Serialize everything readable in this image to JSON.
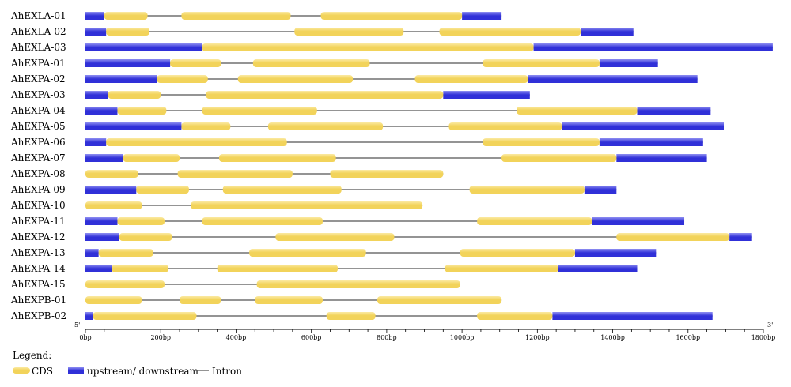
{
  "colors": {
    "cds": "#f2d35a",
    "cds_highlight": "#fbeaa2",
    "utr": "#3030d8",
    "utr_highlight": "#8e8ef2",
    "intron": "#555555",
    "axis": "#000000"
  },
  "axis": {
    "unit": "bp",
    "max": 1800,
    "ticks": [
      0,
      200,
      400,
      600,
      800,
      1000,
      1200,
      1400,
      1600,
      1800
    ],
    "tick_labels": [
      "0bp",
      "200bp",
      "400bp",
      "600bp",
      "800bp",
      "1000bp",
      "1200bp",
      "1400bp",
      "1600bp",
      "1800bp"
    ],
    "five_prime": "5'",
    "three_prime": "3'"
  },
  "legend": {
    "title": "Legend:",
    "cds": "CDS",
    "utr": "upstream/ downstream",
    "intron": "Intron"
  },
  "chart_data": {
    "type": "gene-structure",
    "genes": [
      {
        "name": "AhEXLA-01",
        "length": 1105,
        "utr": [
          [
            0,
            50
          ],
          [
            1000,
            1105
          ]
        ],
        "cds": [
          [
            50,
            165
          ],
          [
            255,
            545
          ],
          [
            625,
            1000
          ]
        ]
      },
      {
        "name": "AhEXLA-02",
        "length": 1455,
        "utr": [
          [
            0,
            55
          ],
          [
            1315,
            1455
          ]
        ],
        "cds": [
          [
            55,
            170
          ],
          [
            555,
            845
          ],
          [
            940,
            1315
          ]
        ]
      },
      {
        "name": "AhEXLA-03",
        "length": 1825,
        "utr": [
          [
            0,
            310
          ],
          [
            1190,
            1825
          ]
        ],
        "cds": [
          [
            310,
            1190
          ]
        ]
      },
      {
        "name": "AhEXPA-01",
        "length": 1520,
        "utr": [
          [
            0,
            225
          ],
          [
            1365,
            1520
          ]
        ],
        "cds": [
          [
            225,
            360
          ],
          [
            445,
            755
          ],
          [
            1055,
            1365
          ]
        ]
      },
      {
        "name": "AhEXPA-02",
        "length": 1625,
        "utr": [
          [
            0,
            190
          ],
          [
            1175,
            1625
          ]
        ],
        "cds": [
          [
            190,
            325
          ],
          [
            405,
            710
          ],
          [
            875,
            1175
          ]
        ]
      },
      {
        "name": "AhEXPA-03",
        "length": 1180,
        "utr": [
          [
            0,
            60
          ],
          [
            950,
            1180
          ]
        ],
        "cds": [
          [
            60,
            200
          ],
          [
            320,
            950
          ]
        ]
      },
      {
        "name": "AhEXPA-04",
        "length": 1660,
        "utr": [
          [
            0,
            85
          ],
          [
            1465,
            1660
          ]
        ],
        "cds": [
          [
            85,
            215
          ],
          [
            310,
            615
          ],
          [
            1145,
            1465
          ]
        ]
      },
      {
        "name": "AhEXPA-05",
        "length": 1695,
        "utr": [
          [
            0,
            255
          ],
          [
            1265,
            1695
          ]
        ],
        "cds": [
          [
            255,
            385
          ],
          [
            485,
            790
          ],
          [
            965,
            1265
          ]
        ]
      },
      {
        "name": "AhEXPA-06",
        "length": 1640,
        "utr": [
          [
            0,
            55
          ],
          [
            1365,
            1640
          ]
        ],
        "cds": [
          [
            55,
            535
          ],
          [
            1055,
            1365
          ]
        ]
      },
      {
        "name": "AhEXPA-07",
        "length": 1650,
        "utr": [
          [
            0,
            100
          ],
          [
            1410,
            1650
          ]
        ],
        "cds": [
          [
            100,
            250
          ],
          [
            355,
            665
          ],
          [
            1105,
            1410
          ]
        ]
      },
      {
        "name": "AhEXPA-08",
        "length": 950,
        "utr": [],
        "cds": [
          [
            0,
            140
          ],
          [
            245,
            550
          ],
          [
            650,
            950
          ]
        ]
      },
      {
        "name": "AhEXPA-09",
        "length": 1410,
        "utr": [
          [
            0,
            135
          ],
          [
            1325,
            1410
          ]
        ],
        "cds": [
          [
            135,
            275
          ],
          [
            365,
            680
          ],
          [
            1020,
            1325
          ]
        ]
      },
      {
        "name": "AhEXPA-10",
        "length": 895,
        "utr": [],
        "cds": [
          [
            0,
            150
          ],
          [
            280,
            895
          ]
        ]
      },
      {
        "name": "AhEXPA-11",
        "length": 1590,
        "utr": [
          [
            0,
            85
          ],
          [
            1345,
            1590
          ]
        ],
        "cds": [
          [
            85,
            210
          ],
          [
            310,
            630
          ],
          [
            1040,
            1345
          ]
        ]
      },
      {
        "name": "AhEXPA-12",
        "length": 1770,
        "utr": [
          [
            0,
            90
          ],
          [
            1710,
            1770
          ]
        ],
        "cds": [
          [
            90,
            230
          ],
          [
            505,
            820
          ],
          [
            1410,
            1710
          ]
        ]
      },
      {
        "name": "AhEXPA-13",
        "length": 1515,
        "utr": [
          [
            0,
            35
          ],
          [
            1300,
            1515
          ]
        ],
        "cds": [
          [
            35,
            180
          ],
          [
            435,
            745
          ],
          [
            995,
            1300
          ]
        ]
      },
      {
        "name": "AhEXPA-14",
        "length": 1465,
        "utr": [
          [
            0,
            70
          ],
          [
            1255,
            1465
          ]
        ],
        "cds": [
          [
            70,
            220
          ],
          [
            350,
            670
          ],
          [
            955,
            1255
          ]
        ]
      },
      {
        "name": "AhEXPA-15",
        "length": 995,
        "utr": [],
        "cds": [
          [
            0,
            210
          ],
          [
            455,
            995
          ]
        ]
      },
      {
        "name": "AhEXPB-01",
        "length": 1105,
        "utr": [],
        "cds": [
          [
            0,
            150
          ],
          [
            250,
            360
          ],
          [
            450,
            630
          ],
          [
            775,
            1105
          ]
        ]
      },
      {
        "name": "AhEXPB-02",
        "length": 1665,
        "utr": [
          [
            0,
            20
          ],
          [
            1240,
            1665
          ]
        ],
        "cds": [
          [
            20,
            295
          ],
          [
            640,
            770
          ],
          [
            1040,
            1240
          ]
        ]
      }
    ]
  }
}
